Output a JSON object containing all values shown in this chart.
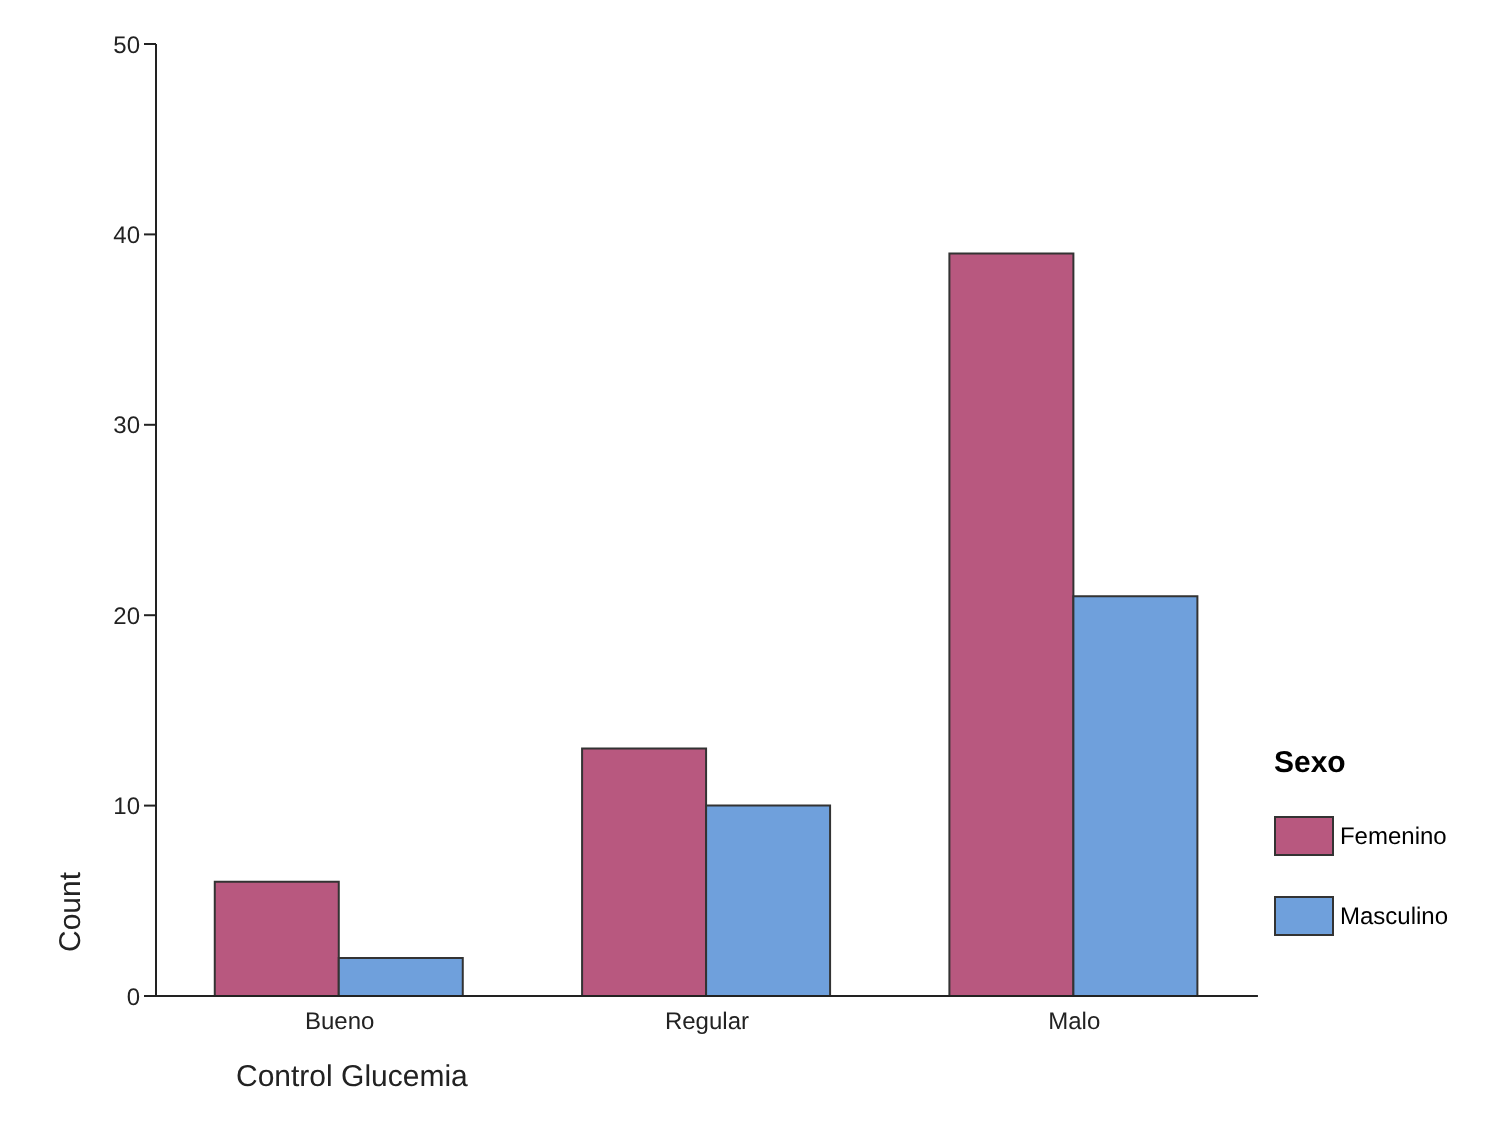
{
  "chart_data": {
    "type": "bar",
    "xlabel": "Control Glucemia",
    "ylabel": "Count",
    "legend_title": "Sexo",
    "categories": [
      "Bueno",
      "Regular",
      "Malo"
    ],
    "series": [
      {
        "name": "Femenino",
        "color": "#b8587f",
        "values": [
          6,
          13,
          39
        ]
      },
      {
        "name": "Masculino",
        "color": "#6fa0dc",
        "values": [
          2,
          10,
          21
        ]
      }
    ],
    "ylim": [
      0,
      50
    ],
    "yticks": [
      0,
      10,
      20,
      30,
      40,
      50
    ],
    "grid": false,
    "legend": "right"
  }
}
